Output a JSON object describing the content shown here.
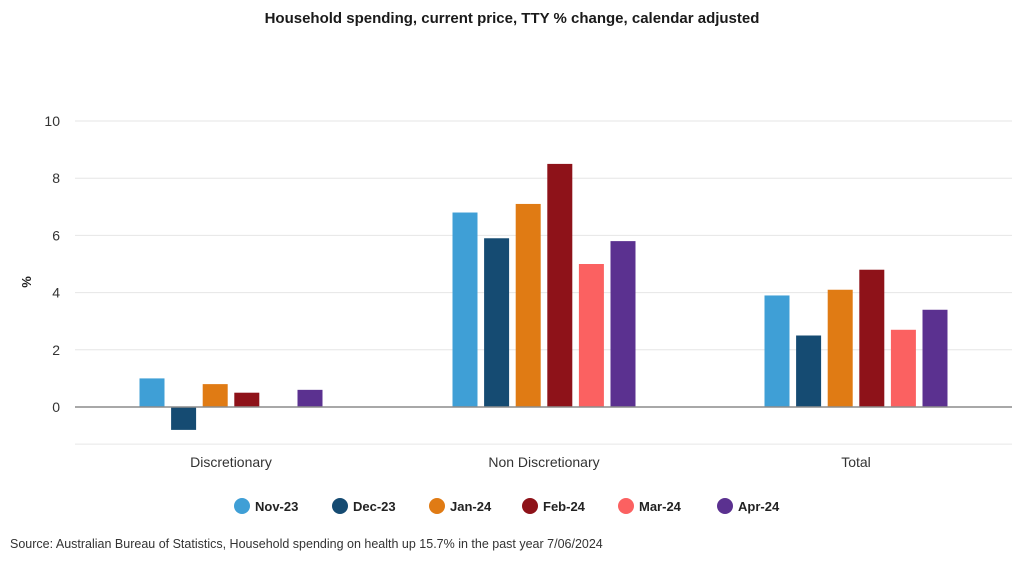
{
  "chart_data": {
    "type": "bar",
    "title": "Household spending, current price, TTY % change, calendar adjusted",
    "xlabel": "",
    "ylabel": "%",
    "ylim": [
      -1.3,
      10
    ],
    "yticks": [
      "0",
      "2",
      "4",
      "6",
      "8",
      "10"
    ],
    "ytick_values": [
      0,
      2,
      4,
      6,
      8,
      10
    ],
    "grid": true,
    "legend_position": "bottom",
    "categories": [
      "Discretionary",
      "Non Discretionary",
      "Total"
    ],
    "series": [
      {
        "name": "Nov-23",
        "color": "#3f9fd6",
        "values": [
          1.0,
          6.8,
          3.9
        ]
      },
      {
        "name": "Dec-23",
        "color": "#154b72",
        "values": [
          -0.8,
          5.9,
          2.5
        ]
      },
      {
        "name": "Jan-24",
        "color": "#e07b14",
        "values": [
          0.8,
          7.1,
          4.1
        ]
      },
      {
        "name": "Feb-24",
        "color": "#8e1219",
        "values": [
          0.5,
          8.5,
          4.8
        ]
      },
      {
        "name": "Mar-24",
        "color": "#fb6161",
        "values": [
          0.0,
          5.0,
          2.7
        ]
      },
      {
        "name": "Apr-24",
        "color": "#5b3190",
        "values": [
          0.6,
          5.8,
          3.4
        ]
      }
    ]
  },
  "source_note": "Source: Australian Bureau of Statistics, Household spending on health up 15.7% in the past year 7/06/2024"
}
